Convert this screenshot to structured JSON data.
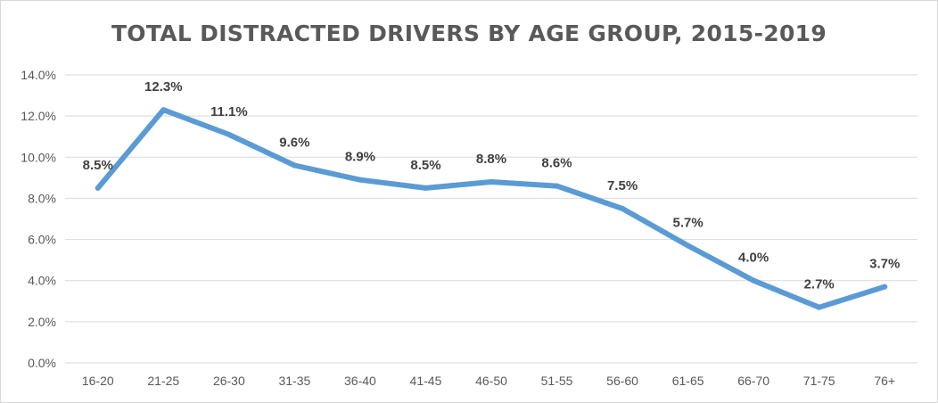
{
  "chart_data": {
    "type": "line",
    "title": "TOTAL DISTRACTED DRIVERS BY AGE GROUP, 2015-2019",
    "xlabel": "",
    "ylabel": "",
    "categories": [
      "16-20",
      "21-25",
      "26-30",
      "31-35",
      "36-40",
      "41-45",
      "46-50",
      "51-55",
      "56-60",
      "61-65",
      "66-70",
      "71-75",
      "76+"
    ],
    "series": [
      {
        "values": [
          8.5,
          12.3,
          11.1,
          9.6,
          8.9,
          8.5,
          8.8,
          8.6,
          7.5,
          5.7,
          4.0,
          2.7,
          3.7
        ],
        "labels": [
          "8.5%",
          "12.3%",
          "11.1%",
          "9.6%",
          "8.9%",
          "8.5%",
          "8.8%",
          "8.6%",
          "7.5%",
          "5.7%",
          "4.0%",
          "2.7%",
          "3.7%"
        ],
        "color": "#5b9bd5"
      }
    ],
    "ylim": [
      0,
      14
    ],
    "yticks": [
      "0.0%",
      "2.0%",
      "4.0%",
      "6.0%",
      "8.0%",
      "10.0%",
      "12.0%",
      "14.0%"
    ],
    "grid": true,
    "legend": "none",
    "colors": {
      "line": "#5b9bd5",
      "grid": "#d9d9d9",
      "text": "#595959",
      "labels": "#404040"
    }
  }
}
